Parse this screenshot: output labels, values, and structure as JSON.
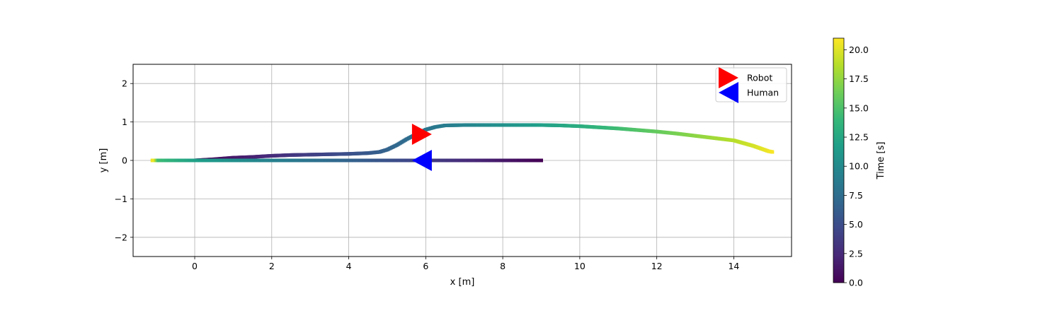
{
  "chart_data": {
    "type": "scatter",
    "title": "",
    "xlabel": "x [m]",
    "ylabel": "y [m]",
    "xlim": [
      -1.6,
      15.5
    ],
    "ylim": [
      -2.5,
      2.5
    ],
    "x_ticks": [
      0,
      2,
      4,
      6,
      8,
      10,
      12,
      14
    ],
    "y_ticks": [
      -2,
      -1,
      0,
      1,
      2
    ],
    "x_tick_labels": [
      "0",
      "2",
      "4",
      "6",
      "8",
      "10",
      "12",
      "14"
    ],
    "y_tick_labels": [
      "−2",
      "−1",
      "0",
      "1",
      "2"
    ],
    "grid": true,
    "legend_position": "top-right",
    "legend": [
      {
        "label": "Robot",
        "color": "#ff0000",
        "marker": "triangle-right"
      },
      {
        "label": "Human",
        "color": "#0000ff",
        "marker": "triangle-left"
      }
    ],
    "colormap": "viridis",
    "colorbar": {
      "label": "Time [s]",
      "range": [
        0,
        21
      ],
      "ticks": [
        0,
        2.5,
        5,
        7.5,
        10,
        12.5,
        15,
        17.5,
        20
      ],
      "tick_labels": [
        "0.0",
        "2.5",
        "5.0",
        "7.5",
        "10.0",
        "12.5",
        "15.0",
        "17.5",
        "20.0"
      ]
    },
    "series": [
      {
        "name": "Robot",
        "color": "#ff0000",
        "points": [
          [
            0.0,
            0.0,
            0.0
          ],
          [
            0.5,
            0.03,
            0.65
          ],
          [
            1.0,
            0.07,
            1.3
          ],
          [
            1.5,
            0.09,
            1.95
          ],
          [
            2.0,
            0.12,
            2.6
          ],
          [
            2.5,
            0.14,
            3.25
          ],
          [
            3.0,
            0.15,
            3.9
          ],
          [
            3.5,
            0.16,
            4.55
          ],
          [
            4.0,
            0.17,
            5.2
          ],
          [
            4.5,
            0.19,
            5.85
          ],
          [
            4.8,
            0.22,
            6.3
          ],
          [
            5.0,
            0.28,
            6.65
          ],
          [
            5.25,
            0.4,
            7.05
          ],
          [
            5.5,
            0.55,
            7.4
          ],
          [
            5.75,
            0.68,
            7.75
          ],
          [
            6.0,
            0.8,
            8.1
          ],
          [
            6.25,
            0.87,
            8.45
          ],
          [
            6.5,
            0.91,
            8.8
          ],
          [
            7.0,
            0.92,
            9.4
          ],
          [
            7.5,
            0.92,
            10.0
          ],
          [
            8.0,
            0.92,
            10.6
          ],
          [
            8.5,
            0.92,
            11.2
          ],
          [
            9.0,
            0.92,
            11.8
          ],
          [
            9.5,
            0.91,
            12.4
          ],
          [
            10.0,
            0.89,
            13.0
          ],
          [
            10.5,
            0.86,
            13.7
          ],
          [
            11.0,
            0.83,
            14.4
          ],
          [
            11.5,
            0.79,
            15.2
          ],
          [
            12.0,
            0.75,
            15.9
          ],
          [
            12.5,
            0.7,
            16.6
          ],
          [
            13.0,
            0.64,
            17.3
          ],
          [
            13.5,
            0.58,
            18.0
          ],
          [
            14.0,
            0.52,
            18.7
          ],
          [
            14.5,
            0.38,
            19.6
          ],
          [
            14.9,
            0.24,
            20.5
          ],
          [
            15.0,
            0.22,
            20.8
          ]
        ],
        "marker_position": [
          5.9,
          0.68
        ]
      },
      {
        "name": "Human",
        "color": "#0000ff",
        "points": [
          [
            9.0,
            0.0,
            0.0
          ],
          [
            8.0,
            0.0,
            1.3
          ],
          [
            7.0,
            0.0,
            2.6
          ],
          [
            6.0,
            0.0,
            3.9
          ],
          [
            5.0,
            0.0,
            5.3
          ],
          [
            4.0,
            0.0,
            6.6
          ],
          [
            3.0,
            0.0,
            7.9
          ],
          [
            2.0,
            0.0,
            9.2
          ],
          [
            1.0,
            0.0,
            10.5
          ],
          [
            0.0,
            0.0,
            11.8
          ],
          [
            -0.5,
            0.0,
            13.0
          ],
          [
            -1.0,
            0.0,
            14.5
          ],
          [
            -1.1,
            0.0,
            20.5
          ]
        ],
        "marker_position": [
          5.9,
          0.0
        ]
      }
    ]
  }
}
